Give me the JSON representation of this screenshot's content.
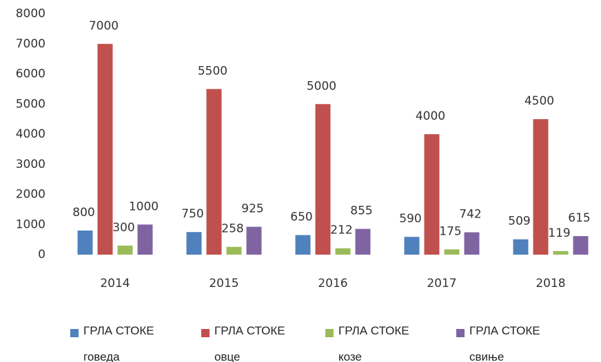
{
  "chart_data": {
    "type": "bar",
    "categories": [
      "2014",
      "2015",
      "2016",
      "2017",
      "2018"
    ],
    "series": [
      {
        "name": "ГРЛА СТОКЕ\nговеда",
        "color": "#4f81bd",
        "values": [
          800,
          750,
          650,
          590,
          509
        ]
      },
      {
        "name": "ГРЛА СТОКЕ\nовце",
        "color": "#c0504d",
        "values": [
          7000,
          5500,
          5000,
          4000,
          4500
        ]
      },
      {
        "name": "ГРЛА СТОКЕ\nкозе",
        "color": "#9bbb59",
        "values": [
          300,
          258,
          212,
          175,
          119
        ]
      },
      {
        "name": "ГРЛА СТОКЕ\nсвиње",
        "color": "#8064a2",
        "values": [
          1000,
          925,
          855,
          742,
          615
        ]
      }
    ],
    "ylim": [
      0,
      8000
    ],
    "yticks": [
      0,
      1000,
      2000,
      3000,
      4000,
      5000,
      6000,
      7000,
      8000
    ],
    "grid": false,
    "legend": "bottom"
  }
}
